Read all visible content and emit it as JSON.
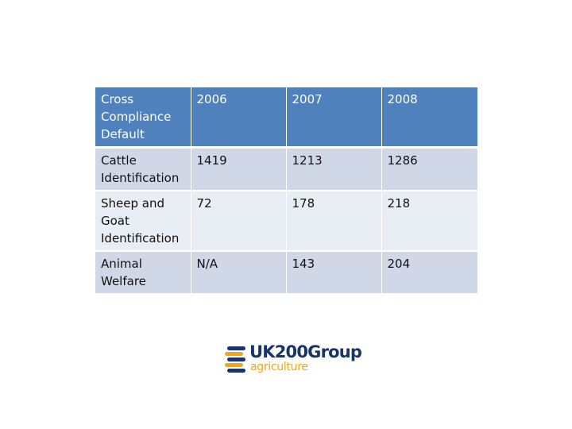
{
  "table": {
    "header": [
      "Cross Compliance Default",
      "2006",
      "2007",
      "2008"
    ],
    "rows": [
      [
        "Cattle Identification",
        "1419",
        "1213",
        "1286"
      ],
      [
        "Sheep and Goat Identification",
        "72",
        "178",
        "218"
      ],
      [
        "Animal Welfare",
        "N/A",
        "143",
        "204"
      ]
    ]
  },
  "logo": {
    "title": "UK200Group",
    "subtitle": "agriculture",
    "colors": {
      "navy": "#16356b",
      "orange": "#f2a516"
    }
  },
  "colors": {
    "header_bg": "#4f81bd",
    "row_dark": "#d0d8e8",
    "row_light": "#e9edf4"
  }
}
